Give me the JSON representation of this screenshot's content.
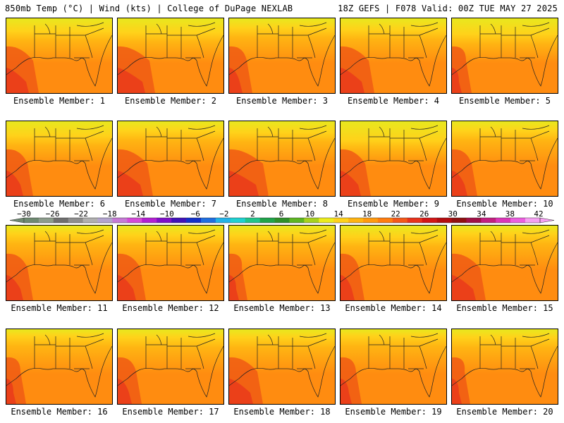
{
  "header": {
    "left": "850mb Temp (°C) | Wind (kts) | College of DuPage NEXLAB",
    "right": "18Z GEFS | F078 Valid: 00Z TUE MAY 27 2025"
  },
  "panels": [
    {
      "label": "Ensemble Member: 1"
    },
    {
      "label": "Ensemble Member: 2"
    },
    {
      "label": "Ensemble Member: 3"
    },
    {
      "label": "Ensemble Member: 4"
    },
    {
      "label": "Ensemble Member: 5"
    },
    {
      "label": "Ensemble Member: 6"
    },
    {
      "label": "Ensemble Member: 7"
    },
    {
      "label": "Ensemble Member: 8"
    },
    {
      "label": "Ensemble Member: 9"
    },
    {
      "label": "Ensemble Member: 10"
    },
    {
      "label": "Ensemble Member: 11"
    },
    {
      "label": "Ensemble Member: 12"
    },
    {
      "label": "Ensemble Member: 13"
    },
    {
      "label": "Ensemble Member: 14"
    },
    {
      "label": "Ensemble Member: 15"
    },
    {
      "label": "Ensemble Member: 16"
    },
    {
      "label": "Ensemble Member: 17"
    },
    {
      "label": "Ensemble Member: 18"
    },
    {
      "label": "Ensemble Member: 19"
    },
    {
      "label": "Ensemble Member: 20"
    }
  ],
  "colorbar": {
    "tick_labels": [
      "−30",
      "−26",
      "−22",
      "−18",
      "−14",
      "−10",
      "−6",
      "−2",
      "2",
      "6",
      "10",
      "14",
      "18",
      "22",
      "26",
      "30",
      "34",
      "38",
      "42"
    ],
    "colors": [
      "#6e8a72",
      "#8c9c8c",
      "#6f6f6f",
      "#8e8e8e",
      "#b0b0b0",
      "#b3a4cf",
      "#c67ad6",
      "#d44ad8",
      "#b21fd3",
      "#7d10c8",
      "#3f12b8",
      "#1230c9",
      "#1f6fe0",
      "#22b3e8",
      "#1fd1d1",
      "#21c48c",
      "#1fa34a",
      "#2e8f2a",
      "#5eb623",
      "#a7d21f",
      "#ecec1c",
      "#ffd21a",
      "#ffb412",
      "#ff9a10",
      "#ff7d10",
      "#f4581a",
      "#e8321c",
      "#d21616",
      "#b40c10",
      "#8f0f12",
      "#a01046",
      "#c31f80",
      "#db36b8",
      "#ec5fe0",
      "#f5a0f2"
    ]
  },
  "colors": {
    "land_north": "#e8e81e",
    "land_mid": "#ffb412",
    "gulf": "#ff8c10",
    "warm_core": "#f05a14",
    "hot": "#e8321c"
  }
}
